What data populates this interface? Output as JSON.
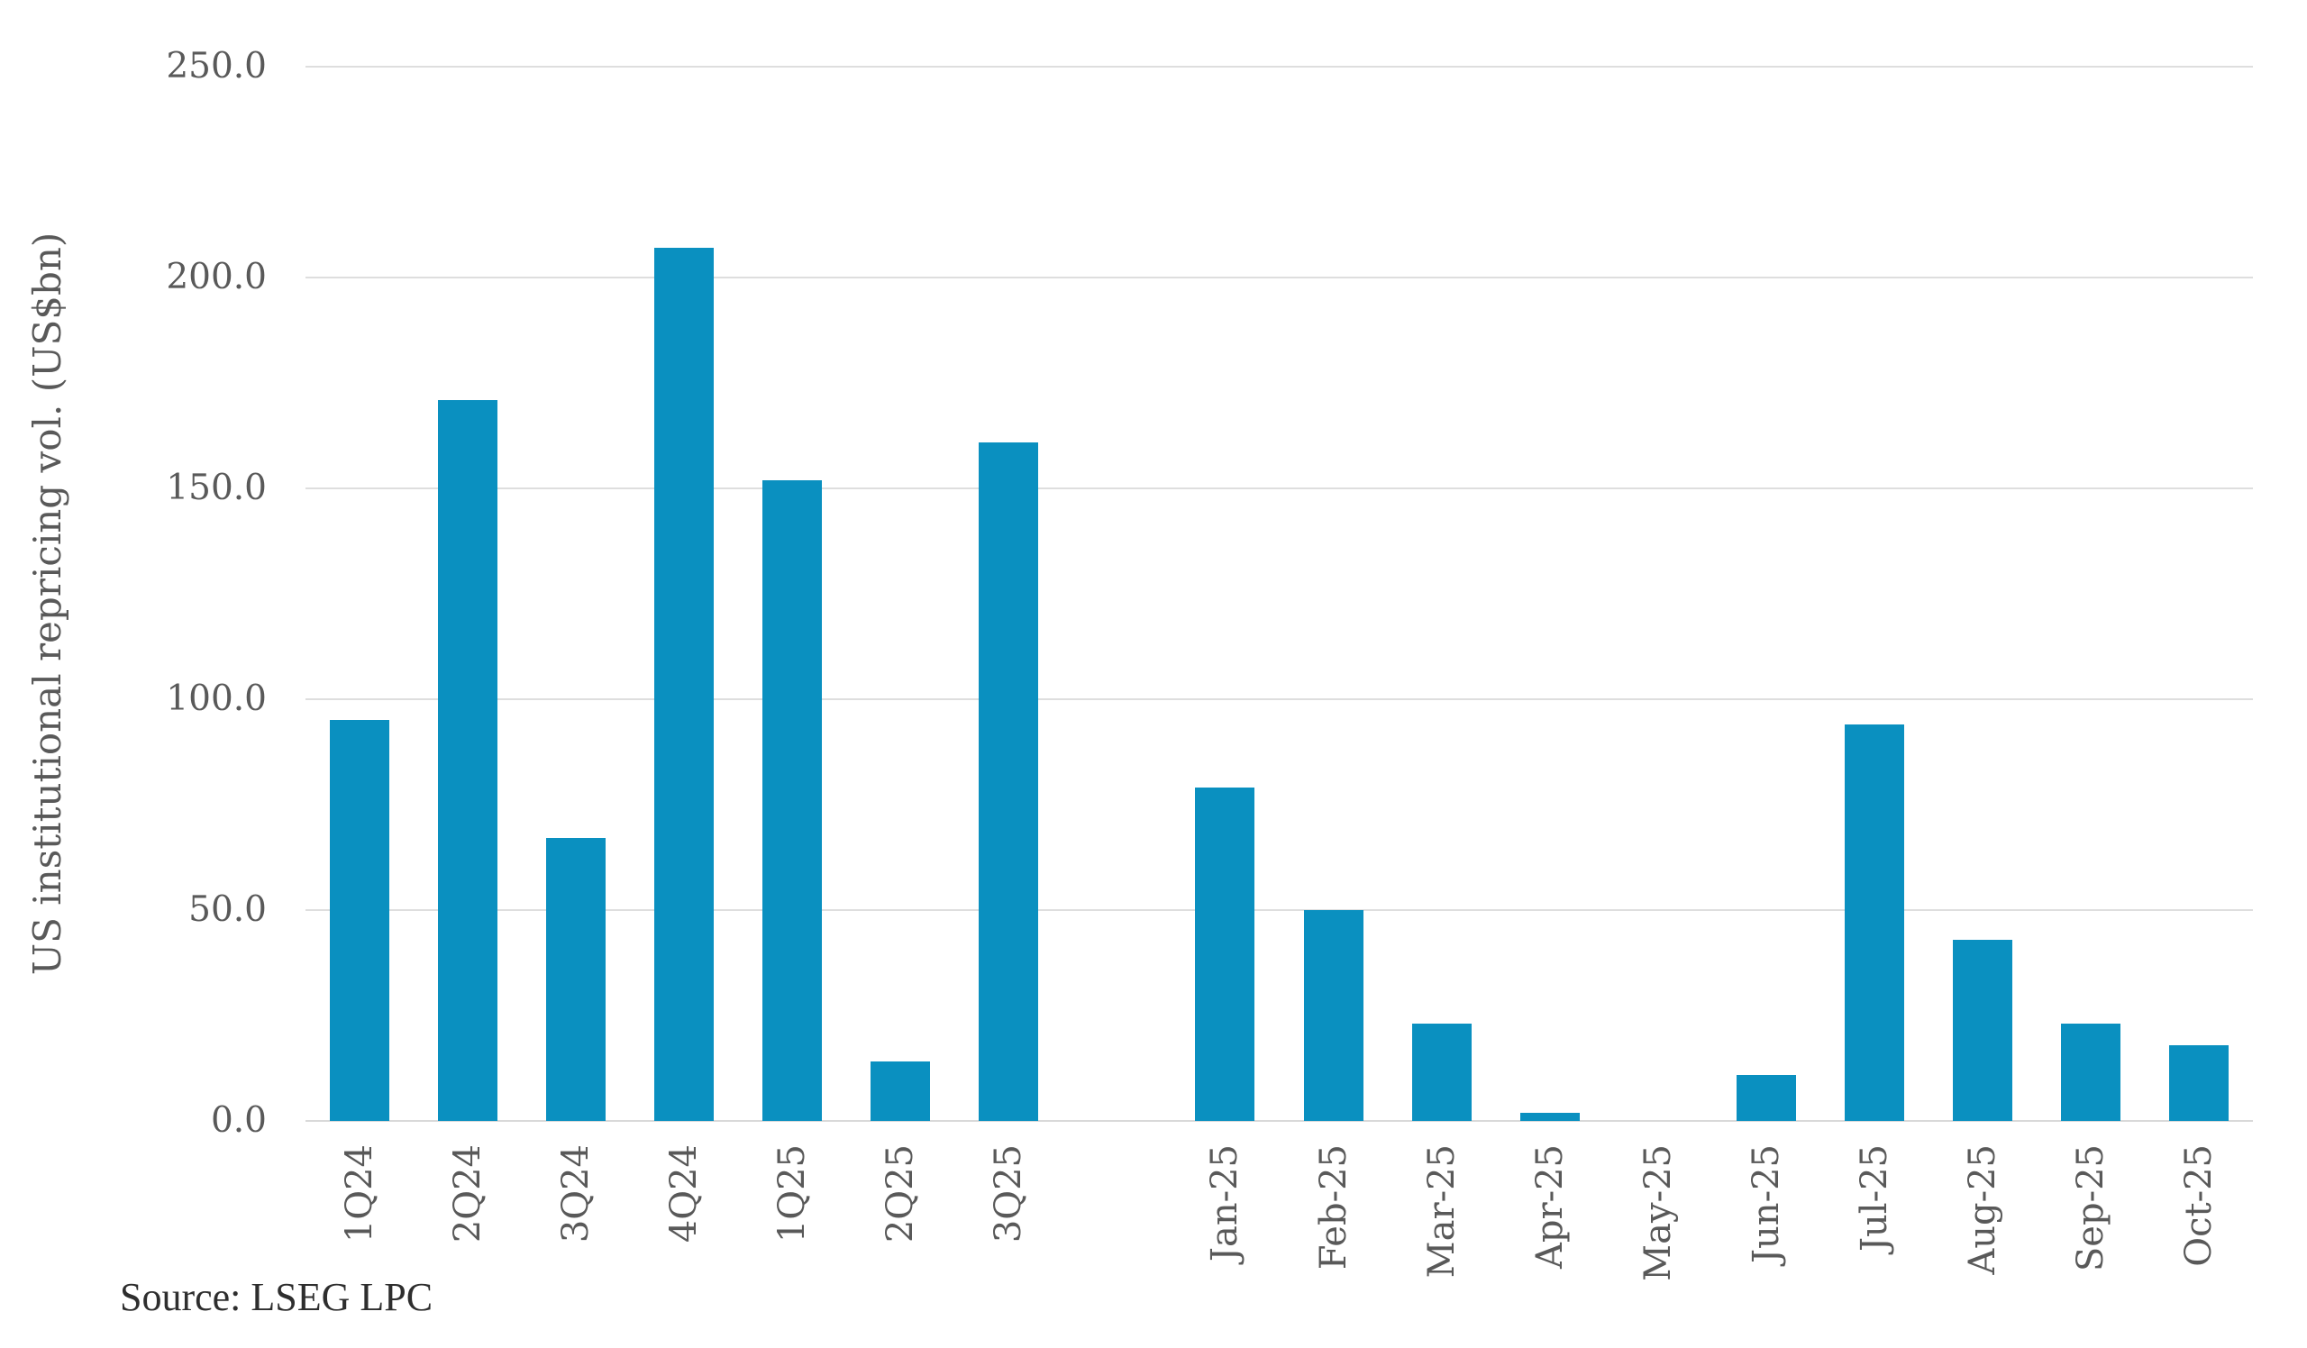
{
  "chart_data": {
    "type": "bar",
    "title": "",
    "xlabel": "",
    "ylabel": "US institutional repricing vol. (US$bn)",
    "ylim": [
      0,
      250
    ],
    "ytick_step": 50,
    "ytick_labels": [
      "0.0",
      "50.0",
      "100.0",
      "150.0",
      "200.0",
      "250.0"
    ],
    "grid": true,
    "legend": null,
    "categories": [
      "1Q24",
      "2Q24",
      "3Q24",
      "4Q24",
      "1Q25",
      "2Q25",
      "3Q25",
      "",
      "Jan-25",
      "Feb-25",
      "Mar-25",
      "Apr-25",
      "May-25",
      "Jun-25",
      "Jul-25",
      "Aug-25",
      "Sep-25",
      "Oct-25"
    ],
    "values": [
      95,
      171,
      67,
      207,
      152,
      14,
      161,
      null,
      79,
      50,
      23,
      2,
      0,
      11,
      94,
      43,
      23,
      18
    ],
    "bar_color": "#0a90c0"
  },
  "source": "Source: LSEG LPC",
  "colors": {
    "bar": "#0a90c0",
    "gridline": "#dedede",
    "axis_line": "#d9d9d9",
    "axis_text": "#595959",
    "source_text": "#2e2e2e",
    "background": "#ffffff"
  }
}
